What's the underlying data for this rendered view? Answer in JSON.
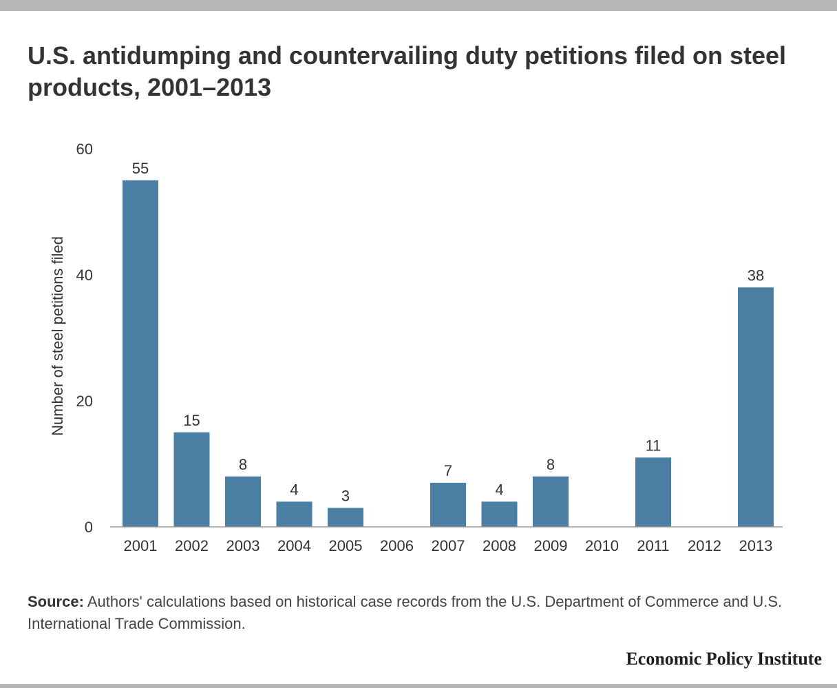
{
  "chart_data": {
    "type": "bar",
    "title": "U.S. antidumping and countervailing duty petitions filed on steel products, 2001–2013",
    "xlabel": "",
    "ylabel": "Number of steel petitions filed",
    "categories": [
      "2001",
      "2002",
      "2003",
      "2004",
      "2005",
      "2006",
      "2007",
      "2008",
      "2009",
      "2010",
      "2011",
      "2012",
      "2013"
    ],
    "values": [
      55,
      15,
      8,
      4,
      3,
      0,
      7,
      4,
      8,
      0,
      11,
      0,
      38
    ],
    "data_labels": [
      "55",
      "15",
      "8",
      "4",
      "3",
      "",
      "7",
      "4",
      "8",
      "",
      "11",
      "",
      "38"
    ],
    "ylim": [
      0,
      60
    ],
    "yticks": [
      0,
      20,
      40,
      60
    ],
    "grid": false,
    "bar_color": "#4a7fa3",
    "axis_color": "#999999"
  },
  "source": {
    "label": "Source:",
    "text": " Authors' calculations based on historical case records from the U.S. Department of Commerce and U.S. International Trade Commission."
  },
  "brand": {
    "name": "Economic Policy Institute"
  }
}
